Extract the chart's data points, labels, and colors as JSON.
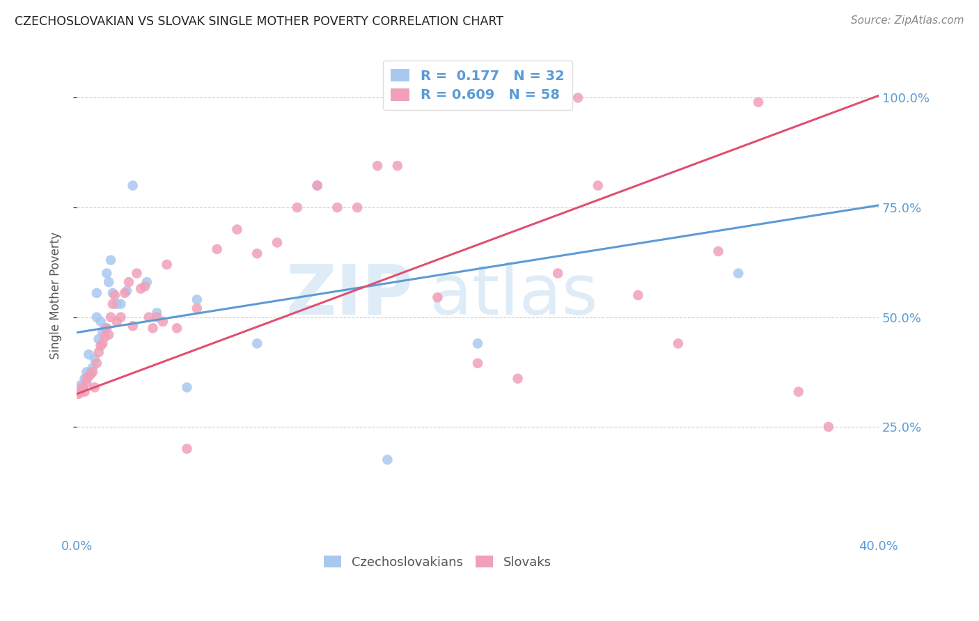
{
  "title": "CZECHOSLOVAKIAN VS SLOVAK SINGLE MOTHER POVERTY CORRELATION CHART",
  "source": "Source: ZipAtlas.com",
  "ylabel": "Single Mother Poverty",
  "ytick_pos": [
    0.25,
    0.5,
    0.75,
    1.0
  ],
  "ytick_labels": [
    "25.0%",
    "50.0%",
    "75.0%",
    "100.0%"
  ],
  "xmin": 0.0,
  "xmax": 0.4,
  "ymin": 0.0,
  "ymax": 1.1,
  "blue_R": 0.177,
  "blue_N": 32,
  "pink_R": 0.609,
  "pink_N": 58,
  "blue_color": "#A8C8F0",
  "pink_color": "#F0A0B8",
  "blue_line_color": "#5B9BD5",
  "pink_line_color": "#E05070",
  "blue_line_x": [
    0.0,
    0.4
  ],
  "blue_line_y": [
    0.465,
    0.755
  ],
  "pink_line_x": [
    0.0,
    0.4
  ],
  "pink_line_y": [
    0.325,
    1.005
  ],
  "blue_points_x": [
    0.001,
    0.002,
    0.003,
    0.004,
    0.005,
    0.006,
    0.007,
    0.008,
    0.009,
    0.01,
    0.01,
    0.011,
    0.012,
    0.013,
    0.014,
    0.015,
    0.016,
    0.017,
    0.018,
    0.02,
    0.022,
    0.025,
    0.028,
    0.035,
    0.04,
    0.055,
    0.06,
    0.09,
    0.12,
    0.155,
    0.2,
    0.33
  ],
  "blue_points_y": [
    0.335,
    0.345,
    0.34,
    0.36,
    0.375,
    0.415,
    0.375,
    0.385,
    0.405,
    0.555,
    0.5,
    0.45,
    0.49,
    0.465,
    0.475,
    0.6,
    0.58,
    0.63,
    0.555,
    0.53,
    0.53,
    0.56,
    0.8,
    0.58,
    0.51,
    0.34,
    0.54,
    0.44,
    0.8,
    0.175,
    0.44,
    0.6
  ],
  "pink_points_x": [
    0.001,
    0.002,
    0.003,
    0.004,
    0.005,
    0.005,
    0.006,
    0.007,
    0.008,
    0.009,
    0.01,
    0.011,
    0.012,
    0.013,
    0.014,
    0.015,
    0.016,
    0.017,
    0.018,
    0.019,
    0.02,
    0.022,
    0.024,
    0.026,
    0.028,
    0.03,
    0.032,
    0.034,
    0.036,
    0.038,
    0.04,
    0.043,
    0.045,
    0.05,
    0.055,
    0.06,
    0.07,
    0.08,
    0.09,
    0.1,
    0.11,
    0.12,
    0.13,
    0.14,
    0.15,
    0.16,
    0.18,
    0.2,
    0.22,
    0.24,
    0.25,
    0.26,
    0.28,
    0.3,
    0.32,
    0.34,
    0.36,
    0.375
  ],
  "pink_points_y": [
    0.325,
    0.33,
    0.34,
    0.33,
    0.35,
    0.36,
    0.365,
    0.37,
    0.375,
    0.34,
    0.395,
    0.42,
    0.435,
    0.44,
    0.455,
    0.475,
    0.46,
    0.5,
    0.53,
    0.55,
    0.49,
    0.5,
    0.555,
    0.58,
    0.48,
    0.6,
    0.565,
    0.57,
    0.5,
    0.475,
    0.5,
    0.49,
    0.62,
    0.475,
    0.2,
    0.52,
    0.655,
    0.7,
    0.645,
    0.67,
    0.75,
    0.8,
    0.75,
    0.75,
    0.845,
    0.845,
    0.545,
    0.395,
    0.36,
    0.6,
    1.0,
    0.8,
    0.55,
    0.44,
    0.65,
    0.99,
    0.33,
    0.25
  ]
}
